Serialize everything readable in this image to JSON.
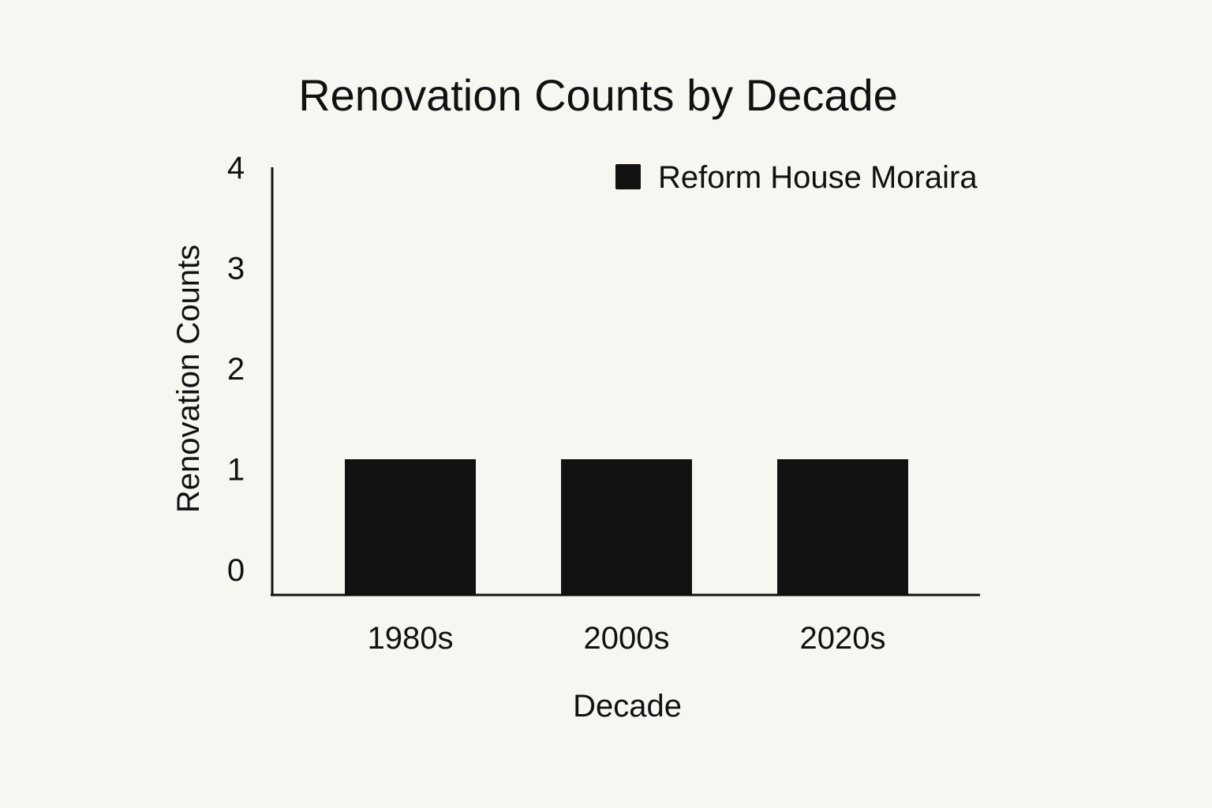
{
  "chart_data": {
    "type": "bar",
    "title": "Renovation Counts by Decade",
    "xlabel": "Decade",
    "ylabel": "Renovation Counts",
    "categories": [
      "1980s",
      "2000s",
      "2020s"
    ],
    "series": [
      {
        "name": "Reform House Moraira",
        "values": [
          1,
          1,
          1
        ],
        "color": "#111111"
      }
    ],
    "yticks": [
      "0",
      "1",
      "2",
      "3",
      "4"
    ],
    "ylim": [
      0,
      4
    ],
    "grid": false,
    "legend_position": "top-right"
  }
}
